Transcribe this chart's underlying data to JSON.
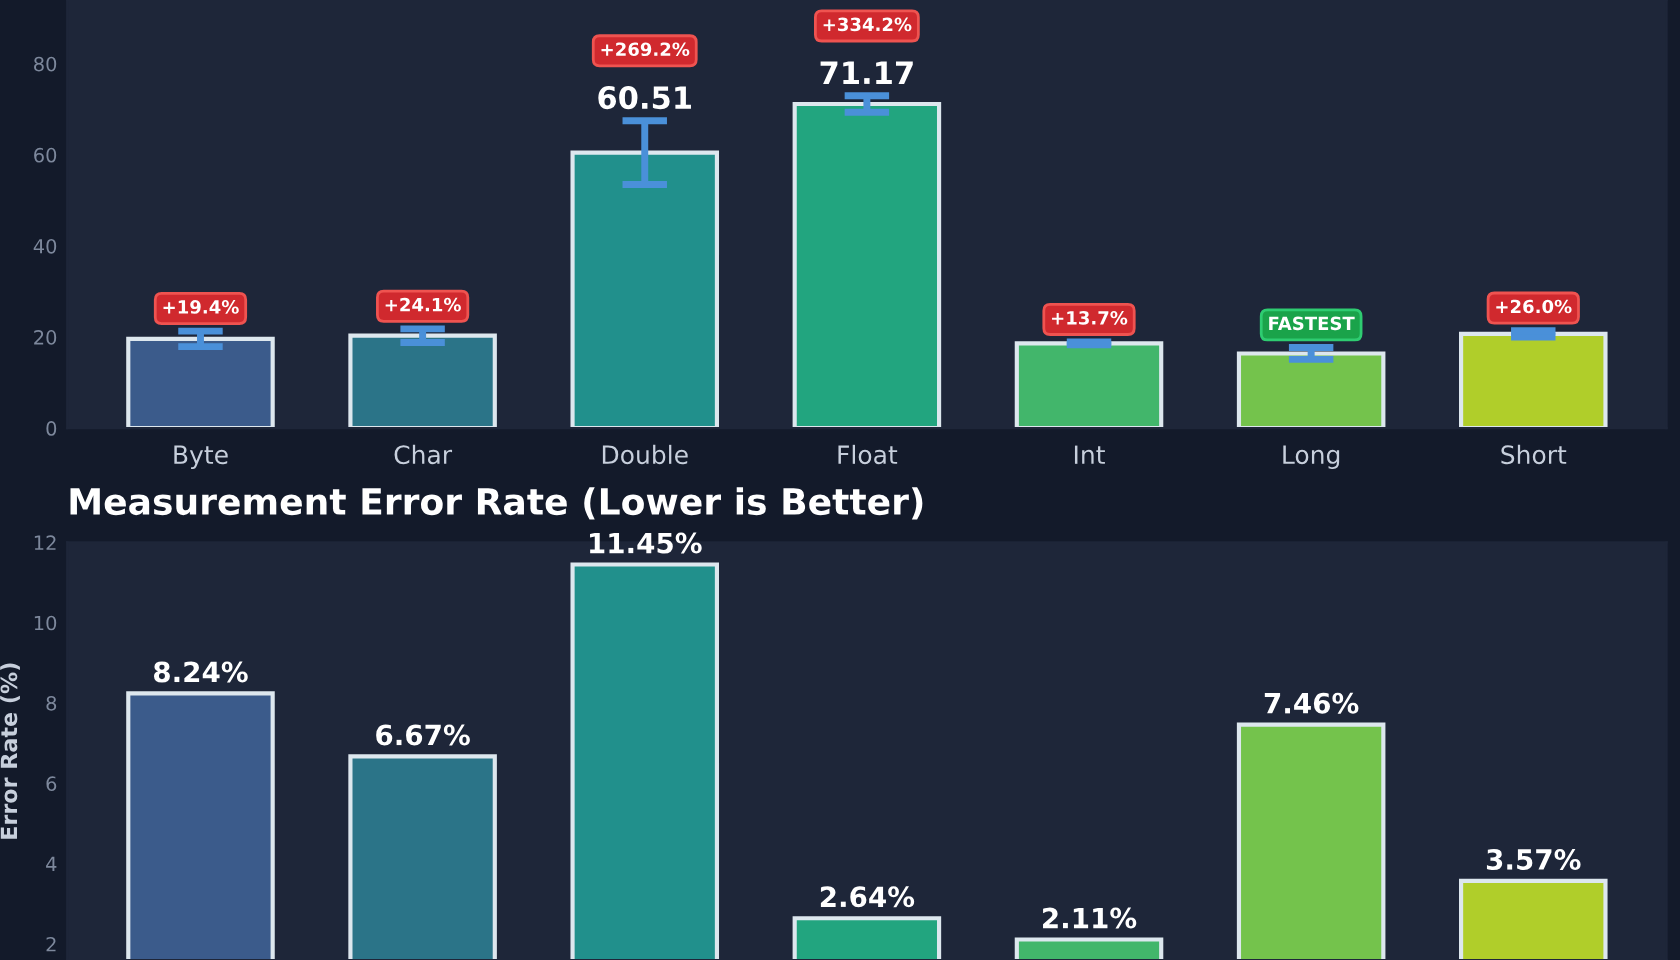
{
  "chart_data": [
    {
      "type": "bar",
      "categories": [
        "Byte",
        "Char",
        "Double",
        "Float",
        "Int",
        "Long",
        "Short"
      ],
      "values": [
        19.6,
        20.3,
        60.51,
        71.17,
        18.6,
        16.4,
        20.7
      ],
      "errors": [
        1.7,
        1.5,
        7.0,
        1.8,
        0.3,
        1.3,
        0.7
      ],
      "colors": [
        "#3b5b8b",
        "#2b7488",
        "#21908c",
        "#22a57f",
        "#42b66b",
        "#74c34c",
        "#b0ce2a"
      ],
      "value_labels": [
        null,
        null,
        "60.51",
        "71.17",
        null,
        null,
        null
      ],
      "annotations": [
        "+19.4%",
        "+24.1%",
        "+269.2%",
        "+334.2%",
        "+13.7%",
        "FASTEST",
        "+26.0%"
      ],
      "ylim": [
        0,
        94
      ],
      "yticks": [
        0,
        20,
        40,
        60,
        80
      ],
      "grid": false
    },
    {
      "type": "bar",
      "title": "Measurement Error Rate (Lower is Better)",
      "ylabel": "Error Rate (%)",
      "categories": [
        null,
        null,
        null,
        null,
        null,
        null,
        null
      ],
      "values": [
        8.24,
        6.67,
        11.45,
        2.64,
        2.11,
        7.46,
        3.57
      ],
      "colors": [
        "#3b5b8b",
        "#2b7488",
        "#21908c",
        "#22a57f",
        "#42b66b",
        "#74c34c",
        "#b0ce2a"
      ],
      "value_labels": [
        "8.24%",
        "6.67%",
        "11.45%",
        "2.64%",
        "2.11%",
        "7.46%",
        "3.57%"
      ],
      "ylim": [
        1.6,
        12
      ],
      "yticks": [
        2,
        4,
        6,
        8,
        10,
        12
      ],
      "tick_labels": "y",
      "grid": false
    }
  ]
}
